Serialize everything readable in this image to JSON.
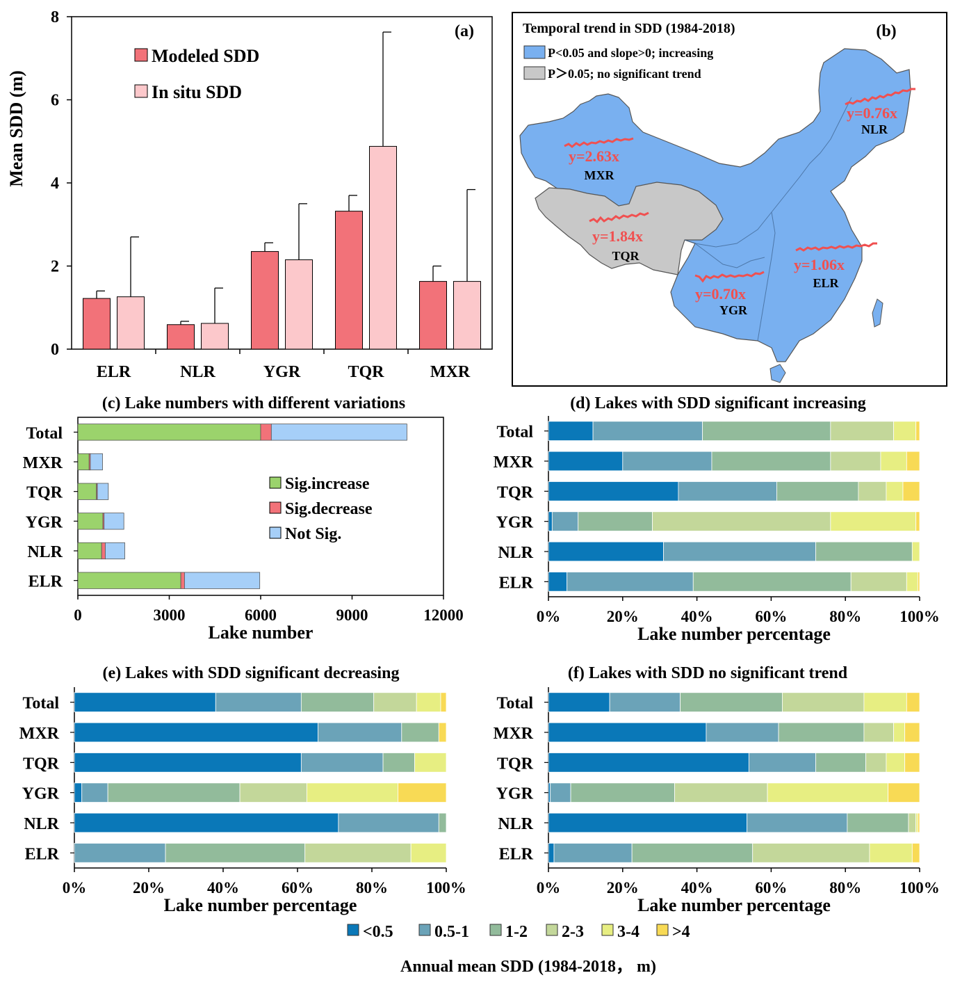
{
  "colors": {
    "modeled": "#f27279",
    "insitu": "#fcc8cb",
    "sig_increase": "#9bd36c",
    "sig_decrease": "#f27279",
    "not_sig": "#a6cff8",
    "map_blue": "#79b0f0",
    "map_gray": "#c8c8c8",
    "trend_red": "#f05050",
    "bins": [
      "#0a78b8",
      "#6ba3b8",
      "#92bb9b",
      "#c3d79a",
      "#e7ee82",
      "#f8da55"
    ]
  },
  "legend_bottom": {
    "items": [
      "<0.5",
      "0.5-1",
      "1-2",
      "2-3",
      "3-4",
      ">4"
    ],
    "title": "Annual mean SDD (1984-2018， m)"
  },
  "chart_data": [
    {
      "id": "a",
      "type": "bar",
      "panel_label": "(a)",
      "categories": [
        "ELR",
        "NLR",
        "YGR",
        "TQR",
        "MXR"
      ],
      "series": [
        {
          "name": "Modeled SDD",
          "values": [
            1.22,
            0.59,
            2.35,
            3.32,
            1.63
          ],
          "errors": [
            0.18,
            0.08,
            0.21,
            0.38,
            0.37
          ]
        },
        {
          "name": "In situ SDD",
          "values": [
            1.26,
            0.62,
            2.15,
            4.88,
            1.63
          ],
          "errors": [
            1.44,
            0.85,
            1.35,
            2.75,
            2.21
          ]
        }
      ],
      "xlabel": "",
      "ylabel": "Mean SDD (m)",
      "ylim": [
        0,
        8
      ],
      "yticks": [
        "0",
        "2",
        "4",
        "6",
        "8"
      ]
    },
    {
      "id": "b",
      "type": "map",
      "panel_label": "(b)",
      "title": "Temporal trend in SDD (1984-2018)",
      "legend": [
        "P<0.05 and slope>0; increasing",
        "P＞0.05; no significant trend"
      ],
      "regions": [
        {
          "name": "NLR",
          "trend": "y=0.76x"
        },
        {
          "name": "MXR",
          "trend": "y=2.63x"
        },
        {
          "name": "TQR",
          "trend": "y=1.84x"
        },
        {
          "name": "YGR",
          "trend": "y=0.70x"
        },
        {
          "name": "ELR",
          "trend": "y=1.06x"
        }
      ]
    },
    {
      "id": "c",
      "type": "bar",
      "orientation": "horizontal",
      "stacked": true,
      "title": "(c) Lake numbers with different variations",
      "categories": [
        "Total",
        "MXR",
        "TQR",
        "YGR",
        "NLR",
        "ELR"
      ],
      "series": [
        {
          "name": "Sig.increase",
          "values": [
            6000,
            370,
            610,
            820,
            780,
            3380
          ]
        },
        {
          "name": "Sig.decrease",
          "values": [
            350,
            40,
            30,
            40,
            120,
            120
          ]
        },
        {
          "name": "Not Sig.",
          "values": [
            4450,
            400,
            360,
            650,
            640,
            2470
          ]
        }
      ],
      "xlabel": "Lake number",
      "xlim": [
        0,
        12000
      ],
      "xticks": [
        "0",
        "3000",
        "6000",
        "9000",
        "12000"
      ]
    },
    {
      "id": "d",
      "type": "bar",
      "orientation": "horizontal",
      "stacked": true,
      "title": "(d) Lakes with SDD significant increasing",
      "categories": [
        "Total",
        "MXR",
        "TQR",
        "YGR",
        "NLR",
        "ELR"
      ],
      "series": [
        {
          "name": "<0.5",
          "values": [
            12,
            20,
            35,
            1,
            31,
            5
          ]
        },
        {
          "name": "0.5-1",
          "values": [
            29.5,
            24,
            26.5,
            7,
            41,
            34
          ]
        },
        {
          "name": "1-2",
          "values": [
            34.5,
            32,
            22,
            20,
            26,
            42.5
          ]
        },
        {
          "name": "2-3",
          "values": [
            17,
            13.5,
            7.5,
            48,
            0,
            15
          ]
        },
        {
          "name": "3-4",
          "values": [
            6,
            7,
            4.5,
            23,
            2,
            3
          ]
        },
        {
          "name": ">4",
          "values": [
            1,
            3.5,
            4.5,
            1,
            0,
            0.5
          ]
        }
      ],
      "xlabel": "Lake number percentage",
      "xlim": [
        0,
        100
      ],
      "xticks": [
        "0%",
        "20%",
        "40%",
        "60%",
        "80%",
        "100%"
      ]
    },
    {
      "id": "e",
      "type": "bar",
      "orientation": "horizontal",
      "stacked": true,
      "title": "(e) Lakes with SDD significant decreasing",
      "categories": [
        "Total",
        "MXR",
        "TQR",
        "YGR",
        "NLR",
        "ELR"
      ],
      "series": [
        {
          "name": "<0.5",
          "values": [
            38,
            65.5,
            61,
            2,
            71,
            0
          ]
        },
        {
          "name": "0.5-1",
          "values": [
            23,
            22.5,
            22,
            7,
            27,
            24.5
          ]
        },
        {
          "name": "1-2",
          "values": [
            19.5,
            10,
            8.5,
            35.5,
            2,
            37.5
          ]
        },
        {
          "name": "2-3",
          "values": [
            11.5,
            0,
            0,
            18,
            0,
            28.5
          ]
        },
        {
          "name": "3-4",
          "values": [
            6.5,
            0,
            8.5,
            24.5,
            0,
            9.5
          ]
        },
        {
          "name": ">4",
          "values": [
            1.5,
            2,
            0,
            13,
            0,
            0
          ]
        }
      ],
      "xlabel": "Lake number percentage",
      "xlim": [
        0,
        100
      ],
      "xticks": [
        "0%",
        "20%",
        "40%",
        "60%",
        "80%",
        "100%"
      ]
    },
    {
      "id": "f",
      "type": "bar",
      "orientation": "horizontal",
      "stacked": true,
      "title": "(f) Lakes with SDD no significant trend",
      "categories": [
        "Total",
        "MXR",
        "TQR",
        "YGR",
        "NLR",
        "ELR"
      ],
      "series": [
        {
          "name": "<0.5",
          "values": [
            16.5,
            42.5,
            54,
            0.5,
            53.5,
            1.5
          ]
        },
        {
          "name": "0.5-1",
          "values": [
            19,
            19.5,
            18,
            5.5,
            27,
            21
          ]
        },
        {
          "name": "1-2",
          "values": [
            27.5,
            23,
            13.5,
            28,
            16.5,
            32.5
          ]
        },
        {
          "name": "2-3",
          "values": [
            22,
            8,
            5.5,
            25,
            2,
            31.5
          ]
        },
        {
          "name": "3-4",
          "values": [
            11.5,
            3,
            5,
            32.5,
            0.5,
            11.5
          ]
        },
        {
          "name": ">4",
          "values": [
            3.5,
            4,
            4,
            8.5,
            0.5,
            2
          ]
        }
      ],
      "xlabel": "Lake number percentage",
      "xlim": [
        0,
        100
      ],
      "xticks": [
        "0%",
        "20%",
        "40%",
        "60%",
        "80%",
        "100%"
      ]
    }
  ]
}
